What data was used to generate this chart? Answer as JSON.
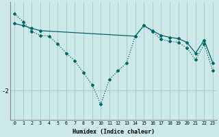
{
  "xlabel": "Humidex (Indice chaleur)",
  "bg_color": "#cce8e8",
  "line_color": "#006666",
  "grid_color": "#aacccc",
  "x_ticks": [
    0,
    1,
    2,
    3,
    4,
    5,
    6,
    7,
    8,
    9,
    10,
    11,
    12,
    13,
    14,
    15,
    16,
    17,
    18,
    19,
    20,
    21,
    22,
    23
  ],
  "ytick_labels": [
    "-2"
  ],
  "ytick_values": [
    -2
  ],
  "series1_x": [
    0,
    1,
    2,
    3,
    4,
    5,
    6,
    7,
    8,
    9,
    10,
    11,
    12,
    13,
    14,
    15,
    16,
    17,
    18,
    19,
    20,
    21,
    22,
    23
  ],
  "series1_y": [
    -0.05,
    -0.25,
    -0.5,
    -0.6,
    -0.62,
    -0.82,
    -1.05,
    -1.25,
    -1.55,
    -1.85,
    -2.35,
    -1.72,
    -1.5,
    -1.3,
    -0.62,
    -0.35,
    -0.5,
    -0.7,
    -0.75,
    -0.78,
    -0.92,
    -1.22,
    -0.82,
    -1.5
  ],
  "series2_x": [
    0,
    1,
    2,
    3,
    14,
    15,
    16,
    17,
    18,
    19,
    20,
    21,
    22,
    23
  ],
  "series2_y": [
    -0.3,
    -0.35,
    -0.42,
    -0.48,
    -0.62,
    -0.35,
    -0.48,
    -0.6,
    -0.65,
    -0.68,
    -0.78,
    -1.05,
    -0.72,
    -1.3
  ],
  "ylim": [
    -2.75,
    0.25
  ],
  "xlim": [
    -0.5,
    23.5
  ]
}
